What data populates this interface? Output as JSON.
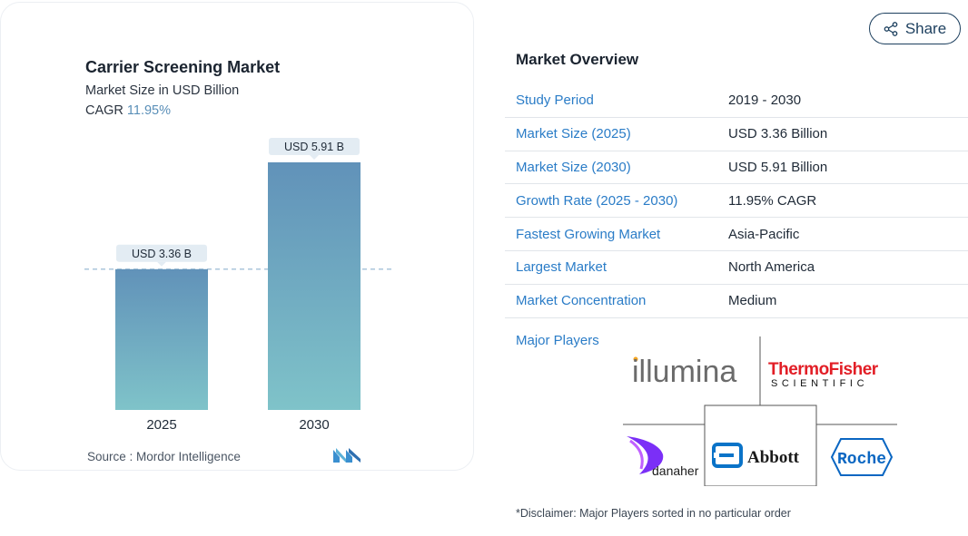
{
  "chart_data": {
    "type": "bar",
    "title": "Carrier Screening Market",
    "subtitle": "Market Size in USD Billion",
    "cagr_label": "CAGR",
    "cagr_value": "11.95%",
    "categories": [
      "2025",
      "2030"
    ],
    "values": [
      3.36,
      5.91
    ],
    "value_labels": [
      "USD 3.36 B",
      "USD 5.91 B"
    ],
    "source": "Source :  Mordor Intelligence"
  },
  "share": {
    "label": "Share"
  },
  "overview": {
    "title": "Market Overview",
    "rows": [
      {
        "key": "Study Period",
        "value": "2019 - 2030"
      },
      {
        "key": "Market Size (2025)",
        "value": "USD 3.36 Billion"
      },
      {
        "key": "Market Size (2030)",
        "value": "USD 5.91 Billion"
      },
      {
        "key": "Growth Rate (2025 - 2030)",
        "value": "11.95% CAGR"
      },
      {
        "key": "Fastest Growing Market",
        "value": "Asia-Pacific"
      },
      {
        "key": "Largest Market",
        "value": "North America"
      },
      {
        "key": "Market Concentration",
        "value": "Medium"
      }
    ],
    "players_label": "Major Players",
    "players": [
      "illumina",
      "ThermoFisher SCIENTIFIC",
      "danaher",
      "Abbott",
      "Roche"
    ],
    "disclaimer": "*Disclaimer: Major Players sorted in no particular order"
  },
  "colors": {
    "bar_top": "#6192b9",
    "bar_bottom": "#7fc3c9",
    "link": "#2a7cc7",
    "share_border": "#1c3f5e"
  }
}
